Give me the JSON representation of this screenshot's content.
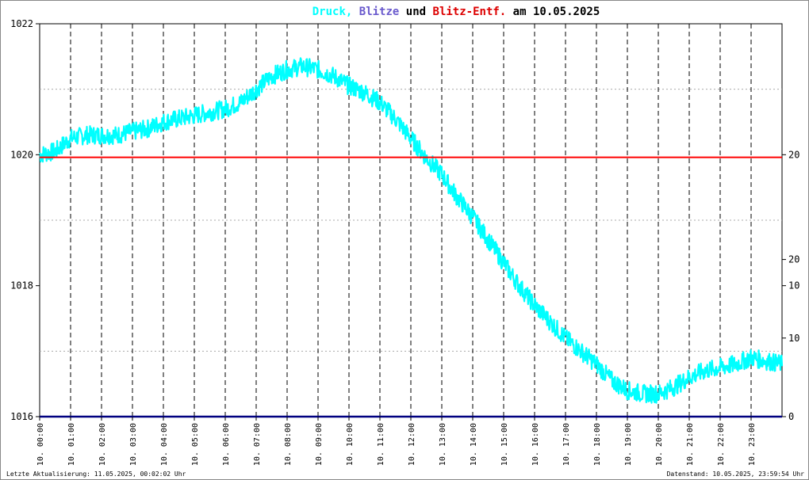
{
  "colors": {
    "pressure": "#00ffff",
    "lightning": "#000080",
    "distance": "#ff0000",
    "title_druck": "#00ffff",
    "title_blitze": "#6a5acd",
    "title_und": "#000000",
    "title_entf": "#dd0000",
    "title_date": "#000000",
    "right_tick_black": "#000000",
    "right_tick_red": "#dd0000"
  },
  "title": {
    "druck": "Druck,",
    "blitze": "Blitze",
    "und": "und",
    "entf": "Blitz-Entf.",
    "date": "am 10.05.2025"
  },
  "footer": {
    "left": "Letzte Aktualisierung: 11.05.2025, 00:02:02 Uhr",
    "right": "Datenstand: 10.05.2025, 23:59:54 Uhr"
  },
  "chart_data": {
    "type": "line",
    "title": "Druck, Blitze und Blitz-Entf. am 10.05.2025",
    "x_categories": [
      "10. 00:00",
      "10. 01:00",
      "10. 02:00",
      "10. 03:00",
      "10. 04:00",
      "10. 05:00",
      "10. 06:00",
      "10. 07:00",
      "10. 08:00",
      "10. 09:00",
      "10. 10:00",
      "10. 11:00",
      "10. 12:00",
      "10. 13:00",
      "10. 14:00",
      "10. 15:00",
      "10. 16:00",
      "10. 17:00",
      "10. 18:00",
      "10. 19:00",
      "10. 20:00",
      "10. 21:00",
      "10. 22:00",
      "10. 23:00"
    ],
    "y_left": {
      "ticks": [
        "1022",
        "1020",
        "1018",
        "1016"
      ],
      "tick_values": [
        1022,
        1020,
        1018,
        1016
      ],
      "range": [
        1016,
        1022
      ]
    },
    "y_right_lightning": {
      "ticks": [
        "20",
        "10",
        "0"
      ],
      "tick_values": [
        20,
        10,
        0
      ],
      "range": [
        0,
        30
      ]
    },
    "y_right_distance": {
      "ticks": [
        "20",
        "10"
      ],
      "tick_values": [
        20,
        10
      ],
      "range": [
        0,
        50
      ]
    },
    "grid": true,
    "series": [
      {
        "name": "Druck",
        "axis": "left",
        "x_hours": [
          0,
          0.5,
          1,
          1.5,
          2,
          2.5,
          3,
          3.5,
          4,
          4.5,
          5,
          5.5,
          6,
          6.5,
          7,
          7.5,
          8,
          8.5,
          9,
          9.5,
          10,
          10.5,
          11,
          11.5,
          12,
          12.5,
          13,
          13.5,
          14,
          14.5,
          15,
          15.5,
          16,
          16.5,
          17,
          17.5,
          18,
          18.5,
          19,
          19.5,
          20,
          20.5,
          21,
          21.5,
          22,
          22.5,
          23,
          23.5,
          24
        ],
        "values": [
          1020.0,
          1020.05,
          1020.25,
          1020.3,
          1020.3,
          1020.3,
          1020.35,
          1020.4,
          1020.5,
          1020.55,
          1020.6,
          1020.65,
          1020.7,
          1020.8,
          1021.0,
          1021.2,
          1021.3,
          1021.35,
          1021.3,
          1021.2,
          1021.05,
          1020.95,
          1020.8,
          1020.55,
          1020.25,
          1019.95,
          1019.7,
          1019.35,
          1019.05,
          1018.7,
          1018.35,
          1018.0,
          1017.7,
          1017.45,
          1017.2,
          1017.0,
          1016.8,
          1016.55,
          1016.4,
          1016.35,
          1016.35,
          1016.45,
          1016.6,
          1016.7,
          1016.75,
          1016.8,
          1016.9,
          1016.85,
          1016.8
        ]
      },
      {
        "name": "Blitze",
        "axis": "right_lightning",
        "x_hours": [
          0,
          24
        ],
        "values": [
          0,
          0
        ]
      },
      {
        "name": "Blitz-Entf.",
        "axis": "right_distance",
        "x_hours": [
          0,
          24
        ],
        "values": [
          33,
          33
        ]
      }
    ]
  }
}
